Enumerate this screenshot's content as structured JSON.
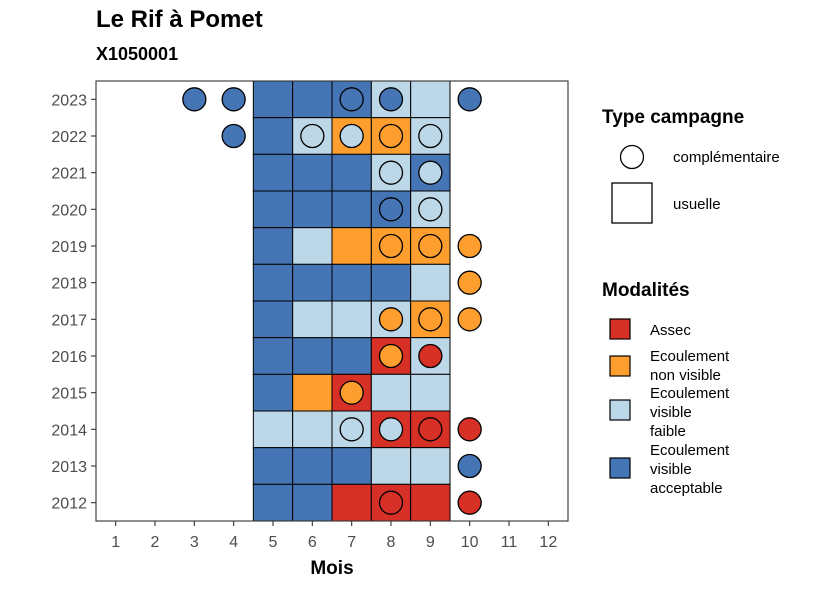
{
  "chart_data": {
    "type": "heatmap",
    "title": "Le Rif à Pomet",
    "subtitle": "X1050001",
    "xlabel": "Mois",
    "ylabel": "",
    "x_ticks": [
      1,
      2,
      3,
      4,
      5,
      6,
      7,
      8,
      9,
      10,
      11,
      12
    ],
    "y_ticks": [
      2012,
      2013,
      2014,
      2015,
      2016,
      2017,
      2018,
      2019,
      2020,
      2021,
      2022,
      2023
    ],
    "xlim": [
      0.5,
      12.5
    ],
    "ylim": [
      2011.5,
      2023.5
    ],
    "grid": false,
    "legend_position": "right",
    "colors": {
      "Assec": "#d73027",
      "Ecoulement non visible": "#fd9e2e",
      "Ecoulement visible faible": "#bcd7e8",
      "Ecoulement visible acceptable": "#4575b4"
    },
    "legends": {
      "type_campagne": {
        "title": "Type campagne",
        "items": [
          {
            "label": "complémentaire",
            "shape": "circle"
          },
          {
            "label": "usuelle",
            "shape": "square"
          }
        ]
      },
      "modalites": {
        "title": "Modalités",
        "items": [
          {
            "key": "Assec",
            "lines": [
              "Assec"
            ]
          },
          {
            "key": "Ecoulement non visible",
            "lines": [
              "Ecoulement",
              "non visible"
            ]
          },
          {
            "key": "Ecoulement visible faible",
            "lines": [
              "Ecoulement",
              "visible",
              "faible"
            ]
          },
          {
            "key": "Ecoulement visible acceptable",
            "lines": [
              "Ecoulement",
              "visible",
              "acceptable"
            ]
          }
        ]
      }
    },
    "usuelle": [
      {
        "year": 2023,
        "cells": {
          "5": "Ecoulement visible acceptable",
          "6": "Ecoulement visible acceptable",
          "7": "Ecoulement visible acceptable",
          "8": "Ecoulement visible faible",
          "9": "Ecoulement visible faible"
        }
      },
      {
        "year": 2022,
        "cells": {
          "5": "Ecoulement visible acceptable",
          "6": "Ecoulement visible faible",
          "7": "Ecoulement non visible",
          "8": "Ecoulement non visible",
          "9": "Ecoulement visible faible"
        }
      },
      {
        "year": 2021,
        "cells": {
          "5": "Ecoulement visible acceptable",
          "6": "Ecoulement visible acceptable",
          "7": "Ecoulement visible acceptable",
          "8": "Ecoulement visible faible",
          "9": "Ecoulement visible acceptable"
        }
      },
      {
        "year": 2020,
        "cells": {
          "5": "Ecoulement visible acceptable",
          "6": "Ecoulement visible acceptable",
          "7": "Ecoulement visible acceptable",
          "8": "Ecoulement visible acceptable",
          "9": "Ecoulement visible faible"
        }
      },
      {
        "year": 2019,
        "cells": {
          "5": "Ecoulement visible acceptable",
          "6": "Ecoulement visible faible",
          "7": "Ecoulement non visible",
          "8": "Ecoulement non visible",
          "9": "Ecoulement non visible"
        }
      },
      {
        "year": 2018,
        "cells": {
          "5": "Ecoulement visible acceptable",
          "6": "Ecoulement visible acceptable",
          "7": "Ecoulement visible acceptable",
          "8": "Ecoulement visible acceptable",
          "9": "Ecoulement visible faible"
        }
      },
      {
        "year": 2017,
        "cells": {
          "5": "Ecoulement visible acceptable",
          "6": "Ecoulement visible faible",
          "7": "Ecoulement visible faible",
          "8": "Ecoulement visible faible",
          "9": "Ecoulement non visible"
        }
      },
      {
        "year": 2016,
        "cells": {
          "5": "Ecoulement visible acceptable",
          "6": "Ecoulement visible acceptable",
          "7": "Ecoulement visible acceptable",
          "8": "Assec",
          "9": "Ecoulement visible faible"
        }
      },
      {
        "year": 2015,
        "cells": {
          "5": "Ecoulement visible acceptable",
          "6": "Ecoulement non visible",
          "7": "Assec",
          "8": "Ecoulement visible faible",
          "9": "Ecoulement visible faible"
        }
      },
      {
        "year": 2014,
        "cells": {
          "5": "Ecoulement visible faible",
          "6": "Ecoulement visible faible",
          "7": "Ecoulement visible faible",
          "8": "Assec",
          "9": "Assec"
        }
      },
      {
        "year": 2013,
        "cells": {
          "5": "Ecoulement visible acceptable",
          "6": "Ecoulement visible acceptable",
          "7": "Ecoulement visible acceptable",
          "8": "Ecoulement visible faible",
          "9": "Ecoulement visible faible"
        }
      },
      {
        "year": 2012,
        "cells": {
          "5": "Ecoulement visible acceptable",
          "6": "Ecoulement visible acceptable",
          "7": "Assec",
          "8": "Assec",
          "9": "Assec"
        }
      }
    ],
    "complementaire": [
      {
        "year": 2023,
        "month": 3,
        "value": "Ecoulement visible acceptable"
      },
      {
        "year": 2023,
        "month": 4,
        "value": "Ecoulement visible acceptable"
      },
      {
        "year": 2023,
        "month": 7,
        "value": "Ecoulement visible acceptable"
      },
      {
        "year": 2023,
        "month": 8,
        "value": "Ecoulement visible acceptable"
      },
      {
        "year": 2023,
        "month": 10,
        "value": "Ecoulement visible acceptable"
      },
      {
        "year": 2022,
        "month": 4,
        "value": "Ecoulement visible acceptable"
      },
      {
        "year": 2022,
        "month": 6,
        "value": "Ecoulement visible faible"
      },
      {
        "year": 2022,
        "month": 7,
        "value": "Ecoulement visible faible"
      },
      {
        "year": 2022,
        "month": 8,
        "value": "Ecoulement non visible"
      },
      {
        "year": 2022,
        "month": 9,
        "value": "Ecoulement visible faible"
      },
      {
        "year": 2021,
        "month": 8,
        "value": "Ecoulement visible faible"
      },
      {
        "year": 2021,
        "month": 9,
        "value": "Ecoulement visible faible"
      },
      {
        "year": 2020,
        "month": 8,
        "value": "Ecoulement visible acceptable"
      },
      {
        "year": 2020,
        "month": 9,
        "value": "Ecoulement visible faible"
      },
      {
        "year": 2019,
        "month": 8,
        "value": "Ecoulement non visible"
      },
      {
        "year": 2019,
        "month": 9,
        "value": "Ecoulement non visible"
      },
      {
        "year": 2019,
        "month": 10,
        "value": "Ecoulement non visible"
      },
      {
        "year": 2018,
        "month": 10,
        "value": "Ecoulement non visible"
      },
      {
        "year": 2017,
        "month": 8,
        "value": "Ecoulement non visible"
      },
      {
        "year": 2017,
        "month": 9,
        "value": "Ecoulement non visible"
      },
      {
        "year": 2017,
        "month": 10,
        "value": "Ecoulement non visible"
      },
      {
        "year": 2016,
        "month": 8,
        "value": "Ecoulement non visible"
      },
      {
        "year": 2016,
        "month": 9,
        "value": "Assec"
      },
      {
        "year": 2015,
        "month": 7,
        "value": "Ecoulement non visible"
      },
      {
        "year": 2014,
        "month": 7,
        "value": "Ecoulement visible faible"
      },
      {
        "year": 2014,
        "month": 8,
        "value": "Ecoulement visible faible"
      },
      {
        "year": 2014,
        "month": 9,
        "value": "Assec"
      },
      {
        "year": 2014,
        "month": 10,
        "value": "Assec"
      },
      {
        "year": 2013,
        "month": 10,
        "value": "Ecoulement visible acceptable"
      },
      {
        "year": 2012,
        "month": 8,
        "value": "Assec"
      },
      {
        "year": 2012,
        "month": 10,
        "value": "Assec"
      }
    ]
  }
}
